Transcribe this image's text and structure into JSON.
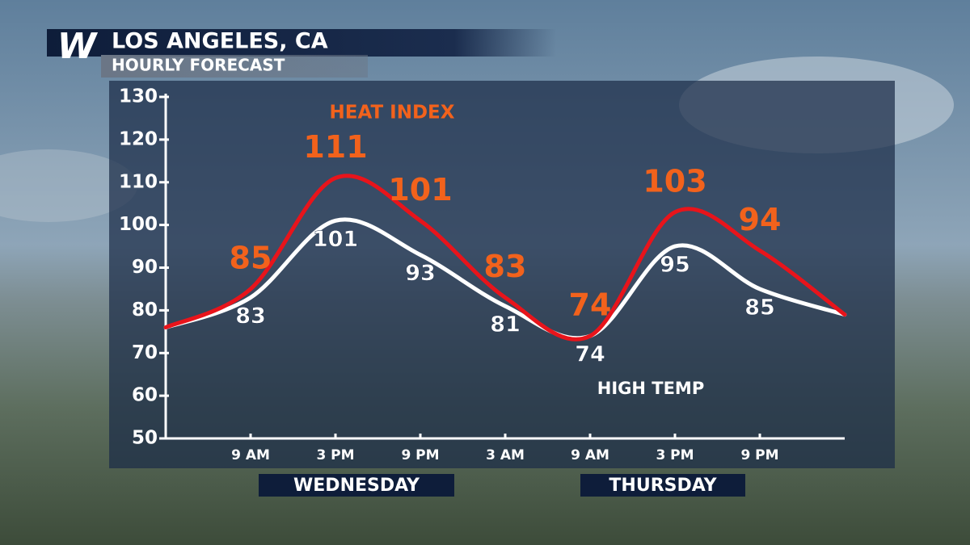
{
  "header": {
    "logo": "W",
    "title": "LOS ANGELES, CA",
    "subtitle": "HOURLY FORECAST"
  },
  "chart_data": {
    "type": "line",
    "categories": [
      null,
      "9 AM",
      "3 PM",
      "9 PM",
      "3 AM",
      "9 AM",
      "3 PM",
      "9 PM",
      null
    ],
    "day_labels": [
      "WEDNESDAY",
      "THURSDAY"
    ],
    "series": [
      {
        "name": "HEAT INDEX",
        "color": "#e8141b",
        "label_color": "#f2621c",
        "values": [
          76,
          85,
          111,
          101,
          83,
          74,
          103,
          94,
          79
        ]
      },
      {
        "name": "HIGH TEMP",
        "color": "#ffffff",
        "label_color": "#ffffff",
        "values": [
          76,
          83,
          101,
          93,
          81,
          74,
          95,
          85,
          79
        ]
      }
    ],
    "ylim": [
      50,
      130
    ],
    "yticks": [
      50,
      60,
      70,
      80,
      90,
      100,
      110,
      120,
      130
    ]
  }
}
